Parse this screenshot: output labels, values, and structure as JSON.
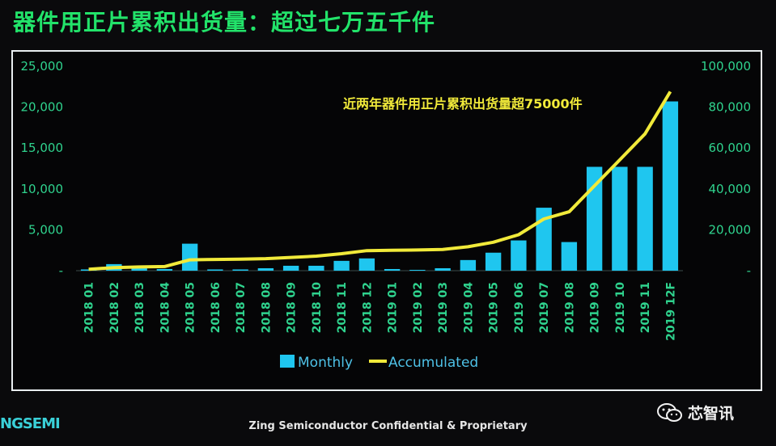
{
  "title": "器件用正片累积出货量：超过七万五千件",
  "footer": "Zing Semiconductor Confidential & Proprietary",
  "logo_text": "NGSEMI",
  "wechat_name": "芯智讯",
  "colors": {
    "bar": "#1fc6ef",
    "line": "#f1ea3a",
    "labels": "#2fd38e",
    "title": "#22e36a"
  },
  "chart_data": {
    "type": "bar",
    "annotation": "近两年器件用正片累积出货量超75000件",
    "categories": [
      "2018 01",
      "2018 02",
      "2018 03",
      "2018 04",
      "2018 05",
      "2018 06",
      "2018 07",
      "2018 08",
      "2018 09",
      "2018 10",
      "2018 11",
      "2018 12",
      "2019 01",
      "2019 02",
      "2019 03",
      "2019 04",
      "2019 05",
      "2019 06",
      "2019 07",
      "2019 08",
      "2019 09",
      "2019 10",
      "2019 11",
      "2019 12F"
    ],
    "y_ticks": [
      "25,000",
      "20,000",
      "15,000",
      "10,000",
      "5,000",
      "-"
    ],
    "y2_ticks": [
      "100,000",
      "80,000",
      "60,000",
      "40,000",
      "20,000",
      "-"
    ],
    "ylim": [
      0,
      25000
    ],
    "y2lim": [
      0,
      100000
    ],
    "series": [
      {
        "name": "Monthly",
        "type": "bar",
        "values": [
          150,
          800,
          300,
          200,
          3300,
          150,
          150,
          300,
          600,
          600,
          1200,
          1500,
          200,
          100,
          300,
          1300,
          2200,
          3700,
          7700,
          3500,
          12700,
          12700,
          12700,
          20700
        ]
      },
      {
        "name": "Accumulated",
        "type": "line",
        "values": [
          700,
          1500,
          1800,
          2000,
          5300,
          5500,
          5600,
          5900,
          6500,
          7100,
          8300,
          9800,
          10000,
          10100,
          10400,
          11700,
          13900,
          17600,
          25300,
          28800,
          41500,
          54200,
          66900,
          87600
        ]
      }
    ],
    "legend_position": "bottom-center",
    "grid": false
  }
}
